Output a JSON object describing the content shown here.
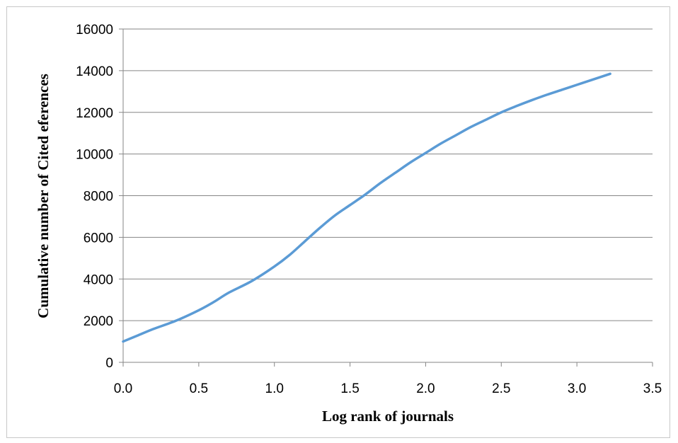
{
  "chart_data": {
    "type": "line",
    "title": "",
    "xlabel": "Log rank of journals",
    "ylabel": "Cumulative number of Cited eferences",
    "xlim": [
      0,
      3.5
    ],
    "ylim": [
      0,
      16000
    ],
    "x_ticks": [
      "0.0",
      "0.5",
      "1.0",
      "1.5",
      "2.0",
      "2.5",
      "3.0",
      "3.5"
    ],
    "y_ticks": [
      "0",
      "2000",
      "4000",
      "6000",
      "8000",
      "10000",
      "12000",
      "14000",
      "16000"
    ],
    "grid": "horizontal",
    "legend": "none",
    "line_color": "#5b9bd5",
    "series": [
      {
        "x": [
          0.0,
          0.1,
          0.2,
          0.35,
          0.5,
          0.6,
          0.7,
          0.85,
          1.0,
          1.1,
          1.2,
          1.3,
          1.4,
          1.5,
          1.6,
          1.7,
          1.8,
          1.9,
          2.0,
          2.1,
          2.2,
          2.3,
          2.4,
          2.5,
          2.6,
          2.7,
          2.8,
          2.9,
          3.0,
          3.1,
          3.22
        ],
        "y": [
          1000,
          1300,
          1600,
          2000,
          2500,
          2900,
          3350,
          3900,
          4600,
          5150,
          5800,
          6450,
          7050,
          7550,
          8050,
          8600,
          9100,
          9600,
          10050,
          10500,
          10900,
          11300,
          11650,
          12000,
          12300,
          12580,
          12840,
          13080,
          13320,
          13560,
          13850
        ]
      }
    ]
  }
}
